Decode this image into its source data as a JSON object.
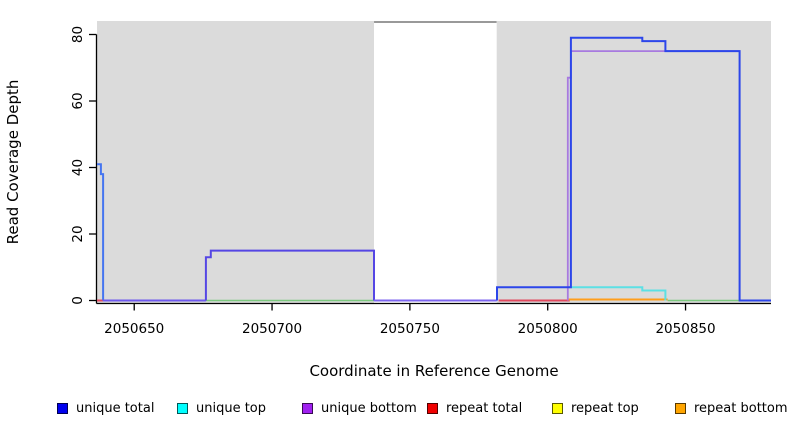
{
  "chart_data": {
    "type": "line",
    "title": "",
    "xlabel": "Coordinate in Reference Genome",
    "ylabel": "Read Coverage Depth",
    "xlim": [
      2050636.5,
      2050881
    ],
    "ylim": [
      0,
      84.5
    ],
    "x_ticks": [
      2050650,
      2050700,
      2050750,
      2050800,
      2050850
    ],
    "y_ticks": [
      0,
      20,
      40,
      60,
      80
    ],
    "grid": false,
    "legend_position": "bottom",
    "shaded_regions": [
      {
        "name": "covered-region-left",
        "x0": 2050636.5,
        "x1": 2050737,
        "fill": "#dbdbdb"
      },
      {
        "name": "uncovered-gap",
        "x0": 2050737,
        "x1": 2050781.5,
        "fill": "#ffffff",
        "top_border": "#999999"
      },
      {
        "name": "covered-region-right",
        "x0": 2050781.5,
        "x1": 2050881,
        "fill": "#dbdbdb"
      }
    ],
    "lines": [
      {
        "name": "repeat-total-baseline-left",
        "color": "#e0485e",
        "width": 2,
        "points": [
          [
            2050636.5,
            0
          ],
          [
            2050639.2,
            0
          ]
        ]
      },
      {
        "name": "unique-total-spike-left",
        "color": "#4575f0",
        "width": 2,
        "points": [
          [
            2050636.5,
            41
          ],
          [
            2050637.9,
            41
          ],
          [
            2050637.9,
            38
          ],
          [
            2050638.7,
            38
          ],
          [
            2050638.7,
            0
          ]
        ]
      },
      {
        "name": "unique-bottom-baseline-left",
        "color": "#6e59ee",
        "width": 2,
        "points": [
          [
            2050638.7,
            0
          ],
          [
            2050676,
            0
          ]
        ]
      },
      {
        "name": "overlap-baseline-green-left",
        "color": "#7cc87f",
        "width": 1.6,
        "points": [
          [
            2050676,
            0
          ],
          [
            2050737,
            0
          ]
        ]
      },
      {
        "name": "unique-total-plateau",
        "color": "#5546e4",
        "width": 2,
        "points": [
          [
            2050676,
            0
          ],
          [
            2050676,
            13
          ],
          [
            2050677.8,
            13
          ],
          [
            2050677.8,
            15
          ],
          [
            2050737,
            15
          ],
          [
            2050737,
            0
          ]
        ]
      },
      {
        "name": "unique-bottom-baseline-gap",
        "color": "#7d66ef",
        "width": 2,
        "points": [
          [
            2050737,
            0
          ],
          [
            2050781.5,
            0
          ]
        ]
      },
      {
        "name": "repeat-total-baseline-mid",
        "color": "#e0485e",
        "width": 2,
        "points": [
          [
            2050782.2,
            0
          ],
          [
            2050808,
            0
          ]
        ]
      },
      {
        "name": "repeat-bottom-line",
        "color": "#ff9e1b",
        "width": 2,
        "points": [
          [
            2050807.3,
            0.3
          ],
          [
            2050843.5,
            0.3
          ]
        ]
      },
      {
        "name": "overlap-baseline-green-right",
        "color": "#7cc87f",
        "width": 1.6,
        "points": [
          [
            2050843.5,
            0
          ],
          [
            2050869.5,
            0
          ]
        ]
      },
      {
        "name": "unique-top-line",
        "color": "#5ce0e4",
        "width": 2,
        "points": [
          [
            2050807.3,
            4
          ],
          [
            2050834.3,
            4
          ],
          [
            2050834.3,
            3
          ],
          [
            2050842.7,
            3
          ],
          [
            2050842.7,
            0
          ]
        ]
      },
      {
        "name": "unique-bottom-main",
        "color": "#a87ae0",
        "width": 1.8,
        "points": [
          [
            2050807.3,
            0
          ],
          [
            2050807.3,
            67
          ],
          [
            2050808.4,
            67
          ],
          [
            2050808.4,
            75
          ],
          [
            2050869.6,
            75
          ]
        ]
      },
      {
        "name": "unique-total-main",
        "color": "#2c46ea",
        "width": 2,
        "points": [
          [
            2050781.6,
            0
          ],
          [
            2050781.6,
            4
          ],
          [
            2050808.4,
            4
          ],
          [
            2050808.4,
            79
          ],
          [
            2050834.3,
            79
          ],
          [
            2050834.3,
            78
          ],
          [
            2050842.7,
            78
          ],
          [
            2050842.7,
            75
          ],
          [
            2050869.6,
            75
          ],
          [
            2050869.6,
            0
          ],
          [
            2050881,
            0
          ]
        ]
      }
    ],
    "legend": [
      {
        "label": "unique total",
        "color": "#0000ee"
      },
      {
        "label": "unique top",
        "color": "#00ffff"
      },
      {
        "label": "unique bottom",
        "color": "#a020f0"
      },
      {
        "label": "repeat total",
        "color": "#f00000"
      },
      {
        "label": "repeat top",
        "color": "#ffff00"
      },
      {
        "label": "repeat bottom",
        "color": "#ffa500"
      }
    ],
    "colors": {
      "shading": "#dbdbdb",
      "gap_border": "#999999",
      "axis": "#000000"
    }
  }
}
